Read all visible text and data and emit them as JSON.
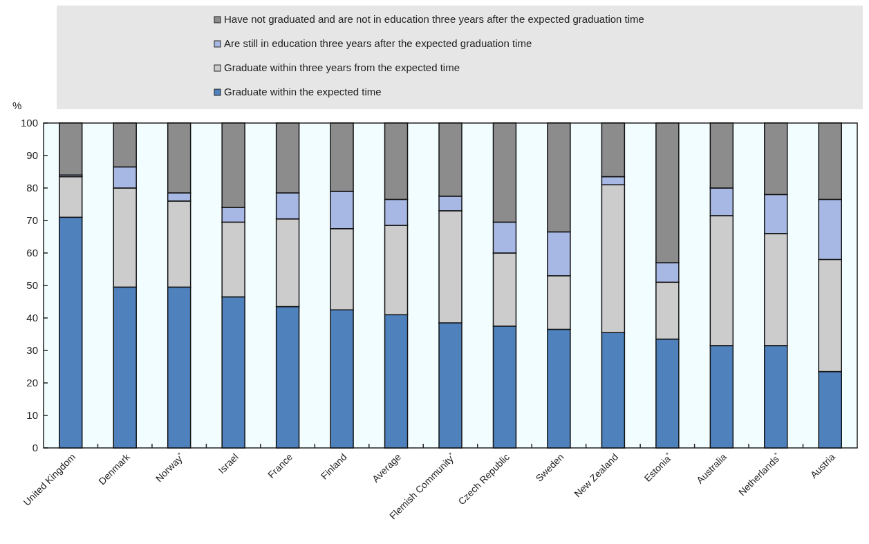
{
  "chart_data": {
    "type": "bar",
    "stacked": true,
    "ylabel": "%",
    "legend": "top",
    "categories": [
      "United Kingdom",
      "Denmark",
      "Norway$^{*}$",
      "Israel",
      "France",
      "Finland",
      "Average",
      "Flemish Community$^{*}$",
      "Czech Republic",
      "Sweden",
      "New Zealand",
      "Estonia$^{*}$",
      "Australia",
      "Netherlands$^{*}$",
      "Austria"
    ],
    "series": [
      {
        "name": "Graduate within the expected time",
        "color": "#4f81bd",
        "values": [
          71,
          49.5,
          49.5,
          46.5,
          43.5,
          42.5,
          41,
          38.5,
          37.5,
          36.5,
          35.5,
          33.5,
          31.5,
          31.5,
          23.5
        ]
      },
      {
        "name": "Graduate within three years from the expected time",
        "color": "#cccccc",
        "values": [
          12.5,
          30.5,
          26.5,
          23,
          27,
          25,
          27.5,
          34.5,
          22.5,
          16.5,
          45.5,
          17.5,
          40,
          34.5,
          34.5
        ]
      },
      {
        "name": "Are still in education three years after the expected graduation time",
        "color": "#a8b8e4",
        "values": [
          0.5,
          6.5,
          2.5,
          4.5,
          8,
          11.5,
          8,
          4.5,
          9.5,
          13.5,
          2.5,
          6,
          8.5,
          12,
          18.5
        ]
      },
      {
        "name": "Have not graduated and are not in education three years after the expected graduation time",
        "color": "#8c8c8c",
        "values": [
          16,
          13.5,
          21.5,
          26,
          21.5,
          21,
          23.5,
          22.5,
          30.5,
          33.5,
          16.5,
          43,
          20,
          22,
          23.5
        ]
      }
    ],
    "ylim": [
      0,
      100
    ],
    "yticks": [
      0,
      10,
      20,
      30,
      40,
      50,
      60,
      70,
      80,
      90,
      100
    ],
    "grid": false
  }
}
